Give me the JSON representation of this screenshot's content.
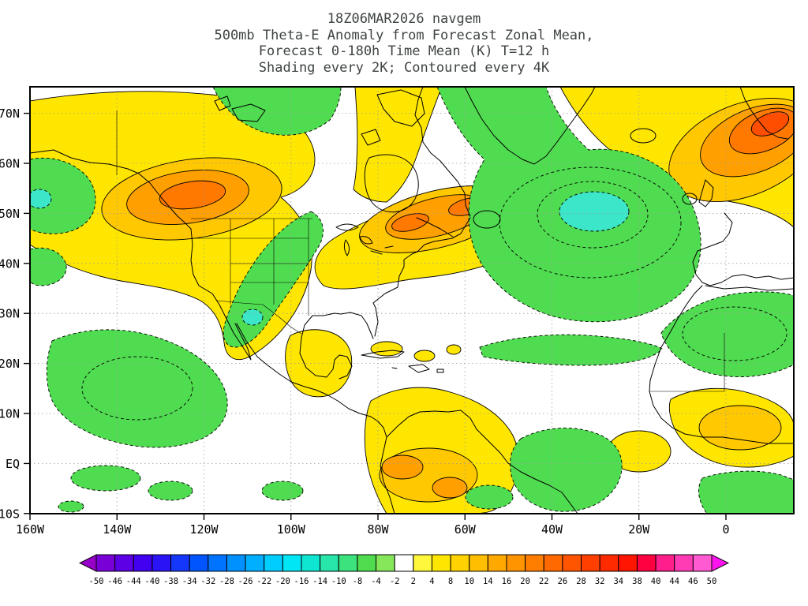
{
  "title": {
    "line1": "18Z06MAR2026 navgem",
    "line2": "500mb Theta-E Anomaly from Forecast Zonal Mean,",
    "line3": "Forecast 0-180h Time Mean (K) T=12 h",
    "line4": "Shading every 2K; Contoured every 4K"
  },
  "axes": {
    "lat_ticks": [
      {
        "label": "70N",
        "lat": 70
      },
      {
        "label": "60N",
        "lat": 60
      },
      {
        "label": "50N",
        "lat": 50
      },
      {
        "label": "40N",
        "lat": 40
      },
      {
        "label": "30N",
        "lat": 30
      },
      {
        "label": "20N",
        "lat": 20
      },
      {
        "label": "10N",
        "lat": 10
      },
      {
        "label": "EQ",
        "lat": 0
      },
      {
        "label": "10S",
        "lat": -10
      }
    ],
    "lon_ticks": [
      {
        "label": "160W",
        "lon": -160
      },
      {
        "label": "140W",
        "lon": -140
      },
      {
        "label": "120W",
        "lon": -120
      },
      {
        "label": "100W",
        "lon": -100
      },
      {
        "label": "80W",
        "lon": -80
      },
      {
        "label": "60W",
        "lon": -60
      },
      {
        "label": "40W",
        "lon": -40
      },
      {
        "label": "20W",
        "lon": -20
      },
      {
        "label": "0",
        "lon": 0
      }
    ]
  },
  "palette": {
    "yellow": "#FFE600",
    "gold": "#FFC800",
    "orange": "#FFA000",
    "deep_orange": "#FF7800",
    "red_orange": "#FF4E00",
    "green": "#50DC50",
    "cyan": "#3CE6C8"
  },
  "colorbar": {
    "labels": [
      "-50",
      "-46",
      "-44",
      "-40",
      "-38",
      "-34",
      "-32",
      "-28",
      "-26",
      "-22",
      "-20",
      "-16",
      "-14",
      "-10",
      "-8",
      "-4",
      "-2",
      "2",
      "4",
      "8",
      "10",
      "14",
      "16",
      "20",
      "22",
      "26",
      "28",
      "32",
      "34",
      "38",
      "40",
      "44",
      "46",
      "50"
    ],
    "segment_colors": [
      "#7A00D8",
      "#5E00E6",
      "#4200F0",
      "#2A14F5",
      "#1437FA",
      "#0055FF",
      "#0073FF",
      "#0091FF",
      "#00AFFF",
      "#00CDFF",
      "#00E6F5",
      "#0FE6D2",
      "#28E6AA",
      "#3CE37D",
      "#4FDD4F",
      "#86E75A",
      "#FFFFFF",
      "#FFF73C",
      "#FFE600",
      "#FFD200",
      "#FFBE00",
      "#FFA800",
      "#FF9300",
      "#FF7E00",
      "#FF6900",
      "#FF5400",
      "#FF3F00",
      "#FF2A00",
      "#FF1500",
      "#FF0040",
      "#FF1E8C",
      "#FF3CB4",
      "#FF5AD2"
    ],
    "left_arrow": "#9600C8",
    "right_arrow": "#FF14F0"
  },
  "chart_data": {
    "type": "heatmap",
    "subtype": "filled-contour-anomaly-map",
    "model": "navgem",
    "run": "18Z06MAR2026",
    "field": "500mb Theta-E Anomaly from Forecast Zonal Mean",
    "forecast": "Forecast 0-180h Time Mean",
    "units": "K",
    "time_step": "T=12 h",
    "shading_interval_K": 2,
    "contour_interval_K": 4,
    "colorbar_range_K": [
      -50,
      50
    ],
    "lat_axis": {
      "labels": [
        "70N",
        "60N",
        "50N",
        "40N",
        "30N",
        "20N",
        "10N",
        "EQ",
        "10S"
      ],
      "range_deg": [
        -10,
        75
      ]
    },
    "lon_axis": {
      "labels": [
        "160W",
        "140W",
        "120W",
        "100W",
        "80W",
        "60W",
        "40W",
        "20W",
        "0"
      ],
      "range_deg": [
        -160,
        15
      ]
    },
    "anomaly_centers": [
      {
        "region": "British Columbia / Pacific Northwest",
        "sign": "positive",
        "approx_peak_K": 14
      },
      {
        "region": "Quebec / Labrador / Gulf of St Lawrence",
        "sign": "positive",
        "approx_peak_K": 14
      },
      {
        "region": "Norwegian Sea / Scandinavia (top right)",
        "sign": "positive",
        "approx_peak_K": 18
      },
      {
        "region": "Central North Atlantic near 50N 30W",
        "sign": "negative",
        "approx_peak_K": -12
      },
      {
        "region": "US Southwest to Great Lakes diagonal band",
        "sign": "negative",
        "approx_peak_K": -8
      },
      {
        "region": "Gulf of Alaska near 160W 50N",
        "sign": "negative",
        "approx_peak_K": -6
      },
      {
        "region": "Northwest Africa / Morocco-Algeria",
        "sign": "negative",
        "approx_peak_K": -6
      },
      {
        "region": "Canadian Arctic islands",
        "sign": "negative",
        "approx_peak_K": -4
      },
      {
        "region": "Northern South America",
        "sign": "positive",
        "approx_peak_K": 10
      },
      {
        "region": "West Africa / Gulf of Guinea",
        "sign": "positive",
        "approx_peak_K": 8
      },
      {
        "region": "Mexico highlands",
        "sign": "positive",
        "approx_peak_K": 4
      },
      {
        "region": "Eastern tropical Pacific",
        "sign": "negative",
        "approx_peak_K": -4
      },
      {
        "region": "Central tropical Atlantic",
        "sign": "negative",
        "approx_peak_K": -4
      }
    ]
  }
}
